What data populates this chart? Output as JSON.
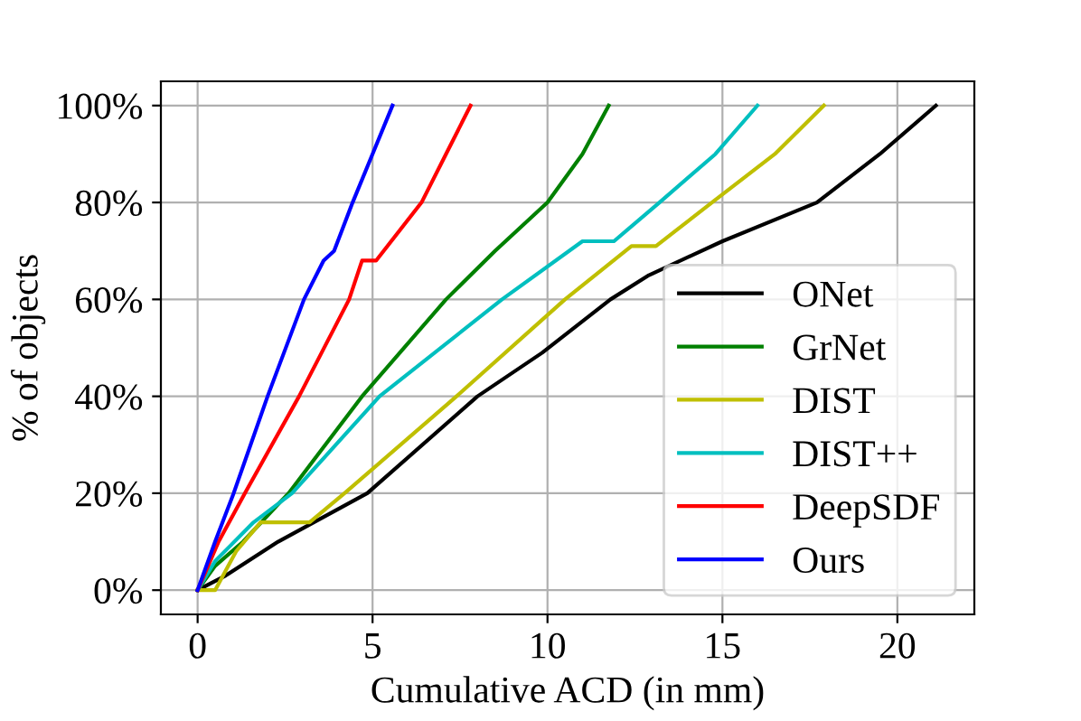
{
  "chart_data": {
    "type": "line",
    "xlabel": "Cumulative ACD (in mm)",
    "ylabel": "% of objects",
    "xlim": [
      -1.05,
      22.2
    ],
    "ylim": [
      -5,
      105
    ],
    "xticks": [
      0,
      5,
      10,
      15,
      20
    ],
    "yticks": [
      {
        "value": 0,
        "label": "0%"
      },
      {
        "value": 20,
        "label": "20%"
      },
      {
        "value": 40,
        "label": "40%"
      },
      {
        "value": 60,
        "label": "60%"
      },
      {
        "value": 80,
        "label": "80%"
      },
      {
        "value": 100,
        "label": "100%"
      }
    ],
    "grid": true,
    "legend": "bottom right",
    "line_style": "solid",
    "marker": "none",
    "series": [
      {
        "name": "ONet",
        "color": "#000000",
        "x": [
          0,
          0.8,
          2.3,
          4.85,
          8.0,
          9.85,
          11.8,
          12.9,
          15,
          17.7,
          19.5,
          21.1
        ],
        "values": [
          0,
          3,
          10,
          20,
          40,
          49,
          60,
          65,
          72,
          80,
          90,
          100
        ]
      },
      {
        "name": "GrNet",
        "color": "#008000",
        "x": [
          0,
          0.5,
          1.3,
          2.6,
          4.7,
          7.1,
          8.5,
          10.0,
          11.0,
          11.75
        ],
        "values": [
          0,
          5,
          10,
          20,
          40,
          60,
          70,
          80,
          90,
          100
        ]
      },
      {
        "name": "DIST",
        "color": "#bfbf00",
        "x": [
          0,
          0.5,
          1.1,
          1.8,
          3.2,
          4.2,
          7.4,
          10.5,
          12.4,
          13.1,
          14.7,
          16.5,
          17.9
        ],
        "values": [
          0,
          0,
          8,
          14,
          14,
          20,
          40,
          60,
          71,
          71,
          80,
          90,
          100
        ]
      },
      {
        "name": "DIST++",
        "color": "#00bfbf",
        "x": [
          0,
          0.5,
          1.6,
          2.7,
          5.2,
          8.7,
          11.0,
          11.9,
          13.2,
          14.8,
          16.0
        ],
        "values": [
          0,
          6,
          14,
          20,
          40,
          60,
          72,
          72,
          80,
          90,
          100
        ]
      },
      {
        "name": "DeepSDF",
        "color": "#ff0000",
        "x": [
          0,
          0.6,
          1.35,
          2.9,
          4.33,
          4.7,
          5.1,
          6.4,
          7.1,
          7.8
        ],
        "values": [
          0,
          10,
          20,
          40,
          60,
          68,
          68,
          80,
          90,
          100
        ]
      },
      {
        "name": "Ours",
        "color": "#0000ff",
        "x": [
          0,
          0.5,
          1.03,
          2.0,
          3.04,
          3.6,
          3.9,
          4.43,
          5.0,
          5.57
        ],
        "values": [
          0,
          10,
          20,
          40,
          60,
          68,
          70,
          80,
          90,
          100
        ]
      }
    ]
  }
}
